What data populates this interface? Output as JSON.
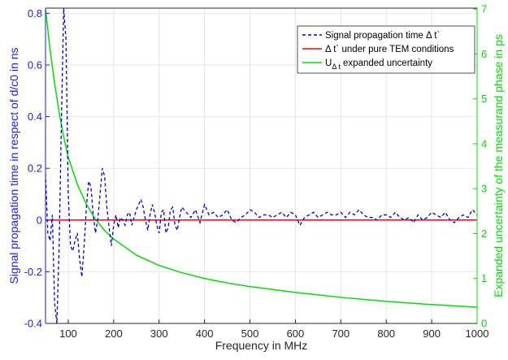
{
  "chart_data": {
    "type": "line",
    "title": "",
    "xlabel": "Frequency in MHz",
    "ylabel_left": "Signal propagation time in respect of d/c0 in ns",
    "ylabel_right": "Expanded uncertainty of the measurand phase in ps",
    "xlim": [
      50,
      1000
    ],
    "ylim_left": [
      -0.4,
      0.82
    ],
    "ylim_right": [
      0,
      7.02
    ],
    "x_ticks": [
      "100",
      "200",
      "300",
      "400",
      "500",
      "600",
      "700",
      "800",
      "900",
      "1000"
    ],
    "y_left_ticks": [
      "-0.4",
      "-0.2",
      "0",
      "0.2",
      "0.4",
      "0.6",
      "0.8"
    ],
    "y_right_ticks": [
      "0",
      "1",
      "2",
      "3",
      "4",
      "5",
      "6",
      "7"
    ],
    "grid": true,
    "legend_position": "top-right",
    "colors": {
      "left_axis": "#1a1aff",
      "right_axis": "#00e000",
      "series_dashed": "#0000e0",
      "series_red": "#ff0000",
      "series_green": "#00e000"
    },
    "series": [
      {
        "name": "Signal propagation time Δ t`",
        "axis": "left",
        "style": "dashed",
        "x": [
          50,
          55,
          60,
          65,
          70,
          75,
          80,
          85,
          90,
          95,
          100,
          105,
          110,
          115,
          120,
          125,
          130,
          135,
          140,
          145,
          150,
          155,
          160,
          165,
          170,
          175,
          180,
          185,
          190,
          195,
          200,
          205,
          210,
          215,
          220,
          225,
          230,
          235,
          240,
          245,
          250,
          255,
          260,
          265,
          270,
          275,
          280,
          285,
          290,
          295,
          300,
          305,
          310,
          315,
          320,
          325,
          330,
          335,
          340,
          345,
          350,
          360,
          370,
          380,
          390,
          400,
          410,
          420,
          430,
          440,
          450,
          460,
          470,
          480,
          490,
          500,
          510,
          520,
          530,
          540,
          550,
          560,
          570,
          580,
          590,
          600,
          610,
          620,
          630,
          640,
          650,
          660,
          670,
          680,
          690,
          700,
          710,
          720,
          730,
          740,
          750,
          760,
          770,
          780,
          790,
          800,
          810,
          820,
          830,
          840,
          850,
          860,
          870,
          880,
          890,
          900,
          910,
          920,
          930,
          940,
          950,
          960,
          970,
          980,
          990,
          1000
        ],
        "y": [
          0.18,
          -0.05,
          -0.08,
          0.02,
          -0.32,
          -0.4,
          -0.1,
          0.38,
          0.82,
          0.7,
          0.1,
          -0.1,
          -0.12,
          -0.08,
          -0.05,
          -0.15,
          -0.22,
          -0.1,
          0.05,
          0.15,
          0.13,
          0.02,
          -0.05,
          0.0,
          0.1,
          0.2,
          0.17,
          0.05,
          -0.03,
          -0.1,
          -0.02,
          0.02,
          -0.03,
          0.01,
          0.0,
          -0.02,
          0.02,
          0.03,
          -0.02,
          0.01,
          0.04,
          0.06,
          0.08,
          0.05,
          0.0,
          -0.04,
          0.02,
          0.06,
          0.03,
          -0.02,
          -0.05,
          0.03,
          0.04,
          -0.05,
          -0.03,
          0.04,
          0.05,
          -0.02,
          -0.04,
          0.01,
          0.05,
          0.03,
          0.01,
          0.04,
          -0.01,
          0.06,
          0.02,
          0.03,
          0.01,
          0.02,
          0.04,
          0.0,
          -0.01,
          0.01,
          0.02,
          0.04,
          0.03,
          0.01,
          0.02,
          0.02,
          0.01,
          0.02,
          0.03,
          0.01,
          0.03,
          0.02,
          -0.02,
          0.01,
          0.02,
          0.03,
          0.01,
          0.02,
          0.03,
          0.02,
          0.02,
          0.03,
          0.01,
          0.03,
          0.02,
          0.04,
          0.02,
          0.01,
          0.01,
          0.0,
          0.02,
          0.02,
          0.01,
          0.03,
          0.01,
          0.0,
          0.01,
          -0.01,
          0.02,
          0.0,
          0.01,
          0.03,
          0.02,
          0.01,
          0.03,
          0.0,
          -0.01,
          0.01,
          0.02,
          0.01,
          0.04,
          0.02
        ]
      },
      {
        "name": "Δ t` under pure TEM conditions",
        "axis": "left",
        "style": "solid",
        "x": [
          50,
          1000
        ],
        "y": [
          0,
          0
        ]
      },
      {
        "name": "U",
        "subscript": "Δ t",
        "suffix": " expanded uncertainty",
        "axis": "right",
        "style": "solid",
        "x": [
          50,
          60,
          70,
          80,
          90,
          100,
          120,
          140,
          160,
          180,
          200,
          250,
          300,
          350,
          400,
          450,
          500,
          600,
          700,
          800,
          900,
          1000
        ],
        "y": [
          7.0,
          6.1,
          5.35,
          4.7,
          4.15,
          3.7,
          3.1,
          2.65,
          2.32,
          2.07,
          1.88,
          1.52,
          1.29,
          1.13,
          1.0,
          0.9,
          0.82,
          0.69,
          0.58,
          0.49,
          0.42,
          0.36
        ]
      }
    ]
  }
}
